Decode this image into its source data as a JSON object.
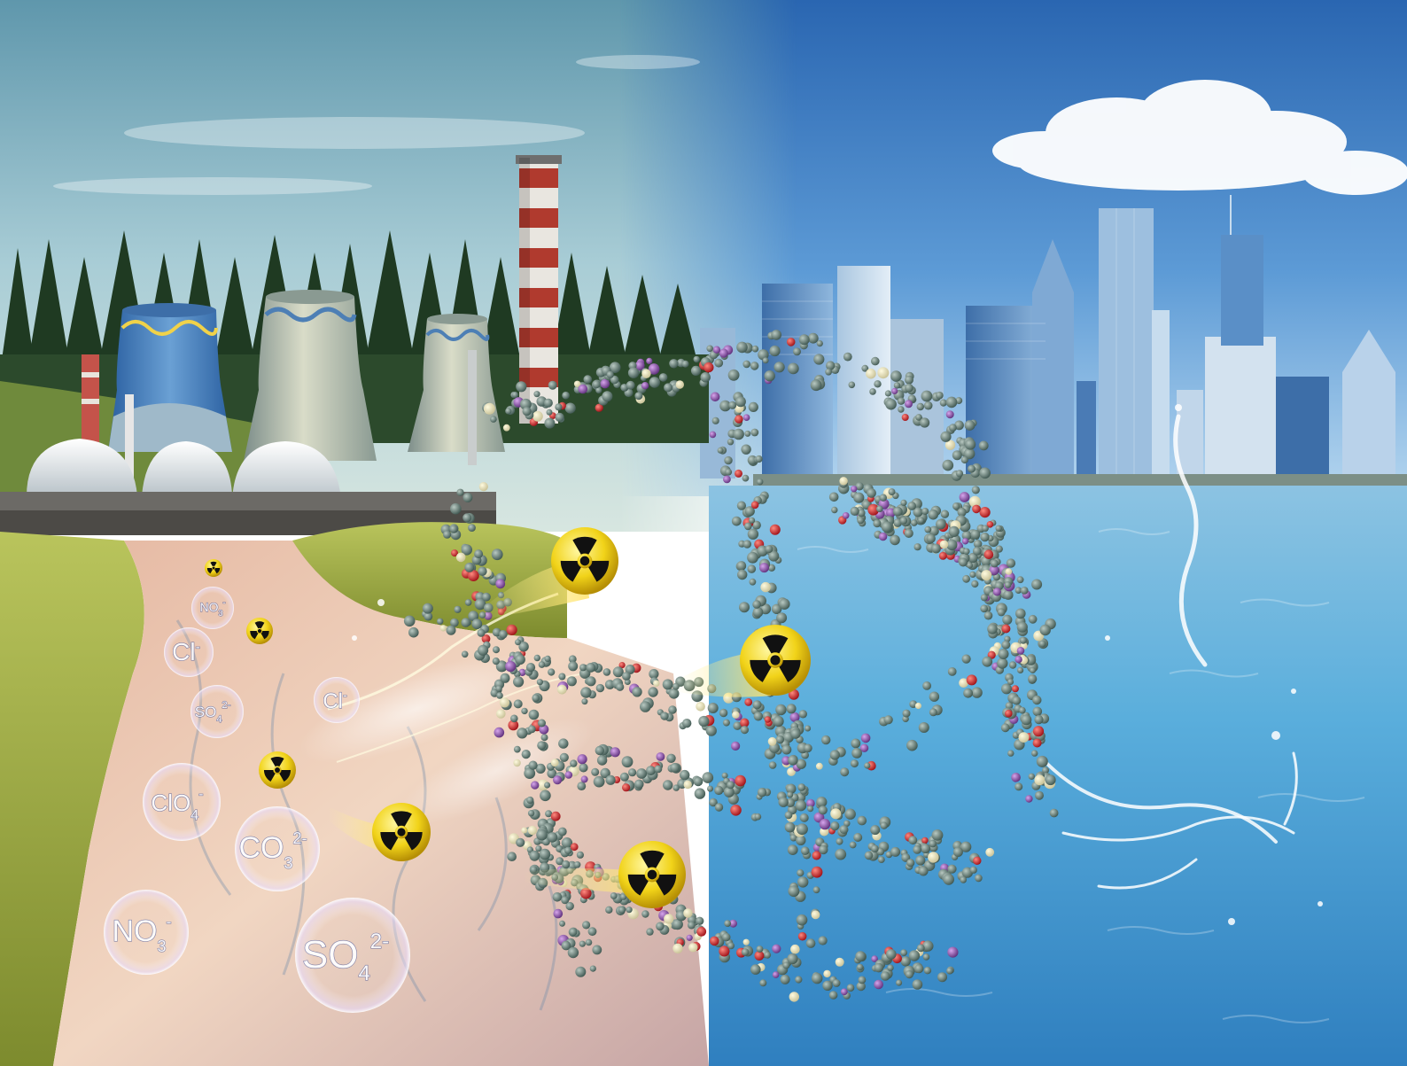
{
  "scene": {
    "description_tags": [
      "power-plant",
      "cooling-tower",
      "chimney",
      "forest",
      "polluted-river",
      "grass",
      "city-skyline",
      "sea",
      "molecular-framework",
      "radioactive-ion"
    ],
    "colors": {
      "sky_left_top": "#7fb3c9",
      "sky_left_bottom": "#c9dfe0",
      "sky_right_top": "#2f6fb8",
      "sky_right_bottom": "#a9d0ee",
      "sea": "#4ea6d9",
      "river": "#d9a48e",
      "grass": "#a9b84a",
      "forest": "#1f3a22",
      "framework_atom": "#5f7a72",
      "framework_oxygen": "#d0242b",
      "framework_iodine": "#8a4fa6",
      "radiation_yellow": "#f2d41a",
      "radiation_black": "#111111"
    }
  },
  "ions": [
    {
      "id": "no3-small",
      "base": "NO",
      "sub": "3",
      "sup": "-"
    },
    {
      "id": "cl-1",
      "base": "Cl",
      "sub": "",
      "sup": "-"
    },
    {
      "id": "cl-2",
      "base": "Cl",
      "sub": "",
      "sup": "-"
    },
    {
      "id": "so4-small",
      "base": "SO",
      "sub": "4",
      "sup": "2-"
    },
    {
      "id": "clo4",
      "base": "ClO",
      "sub": "4",
      "sup": "-"
    },
    {
      "id": "co3",
      "base": "CO",
      "sub": "3",
      "sup": "2-"
    },
    {
      "id": "no3-large",
      "base": "NO",
      "sub": "3",
      "sup": "-"
    },
    {
      "id": "so4-large",
      "base": "SO",
      "sub": "4",
      "sup": "2-"
    }
  ],
  "radiation_symbols": [
    {
      "id": "rad-tiny-1",
      "icon": "radiation-icon"
    },
    {
      "id": "rad-tiny-2",
      "icon": "radiation-icon"
    },
    {
      "id": "rad-small",
      "icon": "radiation-icon"
    },
    {
      "id": "rad-river",
      "icon": "radiation-icon"
    },
    {
      "id": "rad-framework-1",
      "icon": "radiation-icon"
    },
    {
      "id": "rad-framework-2",
      "icon": "radiation-icon"
    },
    {
      "id": "rad-framework-3",
      "icon": "radiation-icon"
    }
  ]
}
